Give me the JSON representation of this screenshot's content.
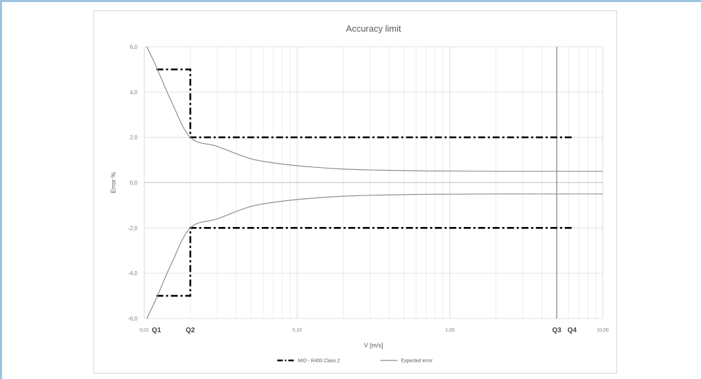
{
  "chart_data": {
    "type": "line",
    "title": "Accuracy limit",
    "xlabel": "V [m/s]",
    "ylabel": "Error %",
    "xscale": "log",
    "xlim": [
      0.01,
      10
    ],
    "ylim": [
      -6,
      6
    ],
    "grid": true,
    "legend_position": "bottom",
    "yticks": [
      {
        "value": 6,
        "label": "6,0"
      },
      {
        "value": 4,
        "label": "4,0"
      },
      {
        "value": 2,
        "label": "2,0"
      },
      {
        "value": 0,
        "label": "0,0"
      },
      {
        "value": -2,
        "label": "-2,0"
      },
      {
        "value": -4,
        "label": "-4,0"
      },
      {
        "value": -6,
        "label": "-6,0"
      }
    ],
    "xticks": [
      {
        "value": 0.01,
        "label": "0,01"
      },
      {
        "value": 0.1,
        "label": "0,10"
      },
      {
        "value": 1,
        "label": "1,00"
      },
      {
        "value": 10,
        "label": "10,00"
      }
    ],
    "flow_markers": [
      {
        "label": "Q1",
        "x": 0.012
      },
      {
        "label": "Q2",
        "x": 0.02
      },
      {
        "label": "Q3",
        "x": 5
      },
      {
        "label": "Q4",
        "x": 6.3
      }
    ],
    "vertical_line_x": 5,
    "series": [
      {
        "name": "MID - R400 Class 2",
        "style": "dash-dot",
        "color": "#000000",
        "segments": [
          {
            "x": [
              0.012,
              0.02,
              0.02,
              6.3
            ],
            "y": [
              5,
              5,
              2,
              2
            ]
          },
          {
            "x": [
              0.012,
              0.02,
              0.02,
              6.3
            ],
            "y": [
              -5,
              -5,
              -2,
              -2
            ]
          }
        ]
      },
      {
        "name": "Expected error",
        "style": "solid",
        "color": "#8c8c8c",
        "segments": [
          {
            "x": [
              0.0104,
              0.012,
              0.015,
              0.02,
              0.03,
              0.05,
              0.08,
              0.12,
              0.2,
              0.35,
              0.6,
              1,
              2,
              5,
              10
            ],
            "y": [
              6.0,
              5.1,
              3.6,
              2.0,
              1.6,
              1.05,
              0.82,
              0.7,
              0.6,
              0.55,
              0.52,
              0.51,
              0.5,
              0.5,
              0.5
            ]
          },
          {
            "x": [
              0.0104,
              0.012,
              0.015,
              0.02,
              0.03,
              0.05,
              0.08,
              0.12,
              0.2,
              0.35,
              0.6,
              1,
              2,
              5,
              10
            ],
            "y": [
              -6.0,
              -5.1,
              -3.6,
              -2.0,
              -1.6,
              -1.05,
              -0.82,
              -0.7,
              -0.6,
              -0.55,
              -0.52,
              -0.51,
              -0.5,
              -0.5,
              -0.5
            ]
          }
        ]
      }
    ]
  }
}
